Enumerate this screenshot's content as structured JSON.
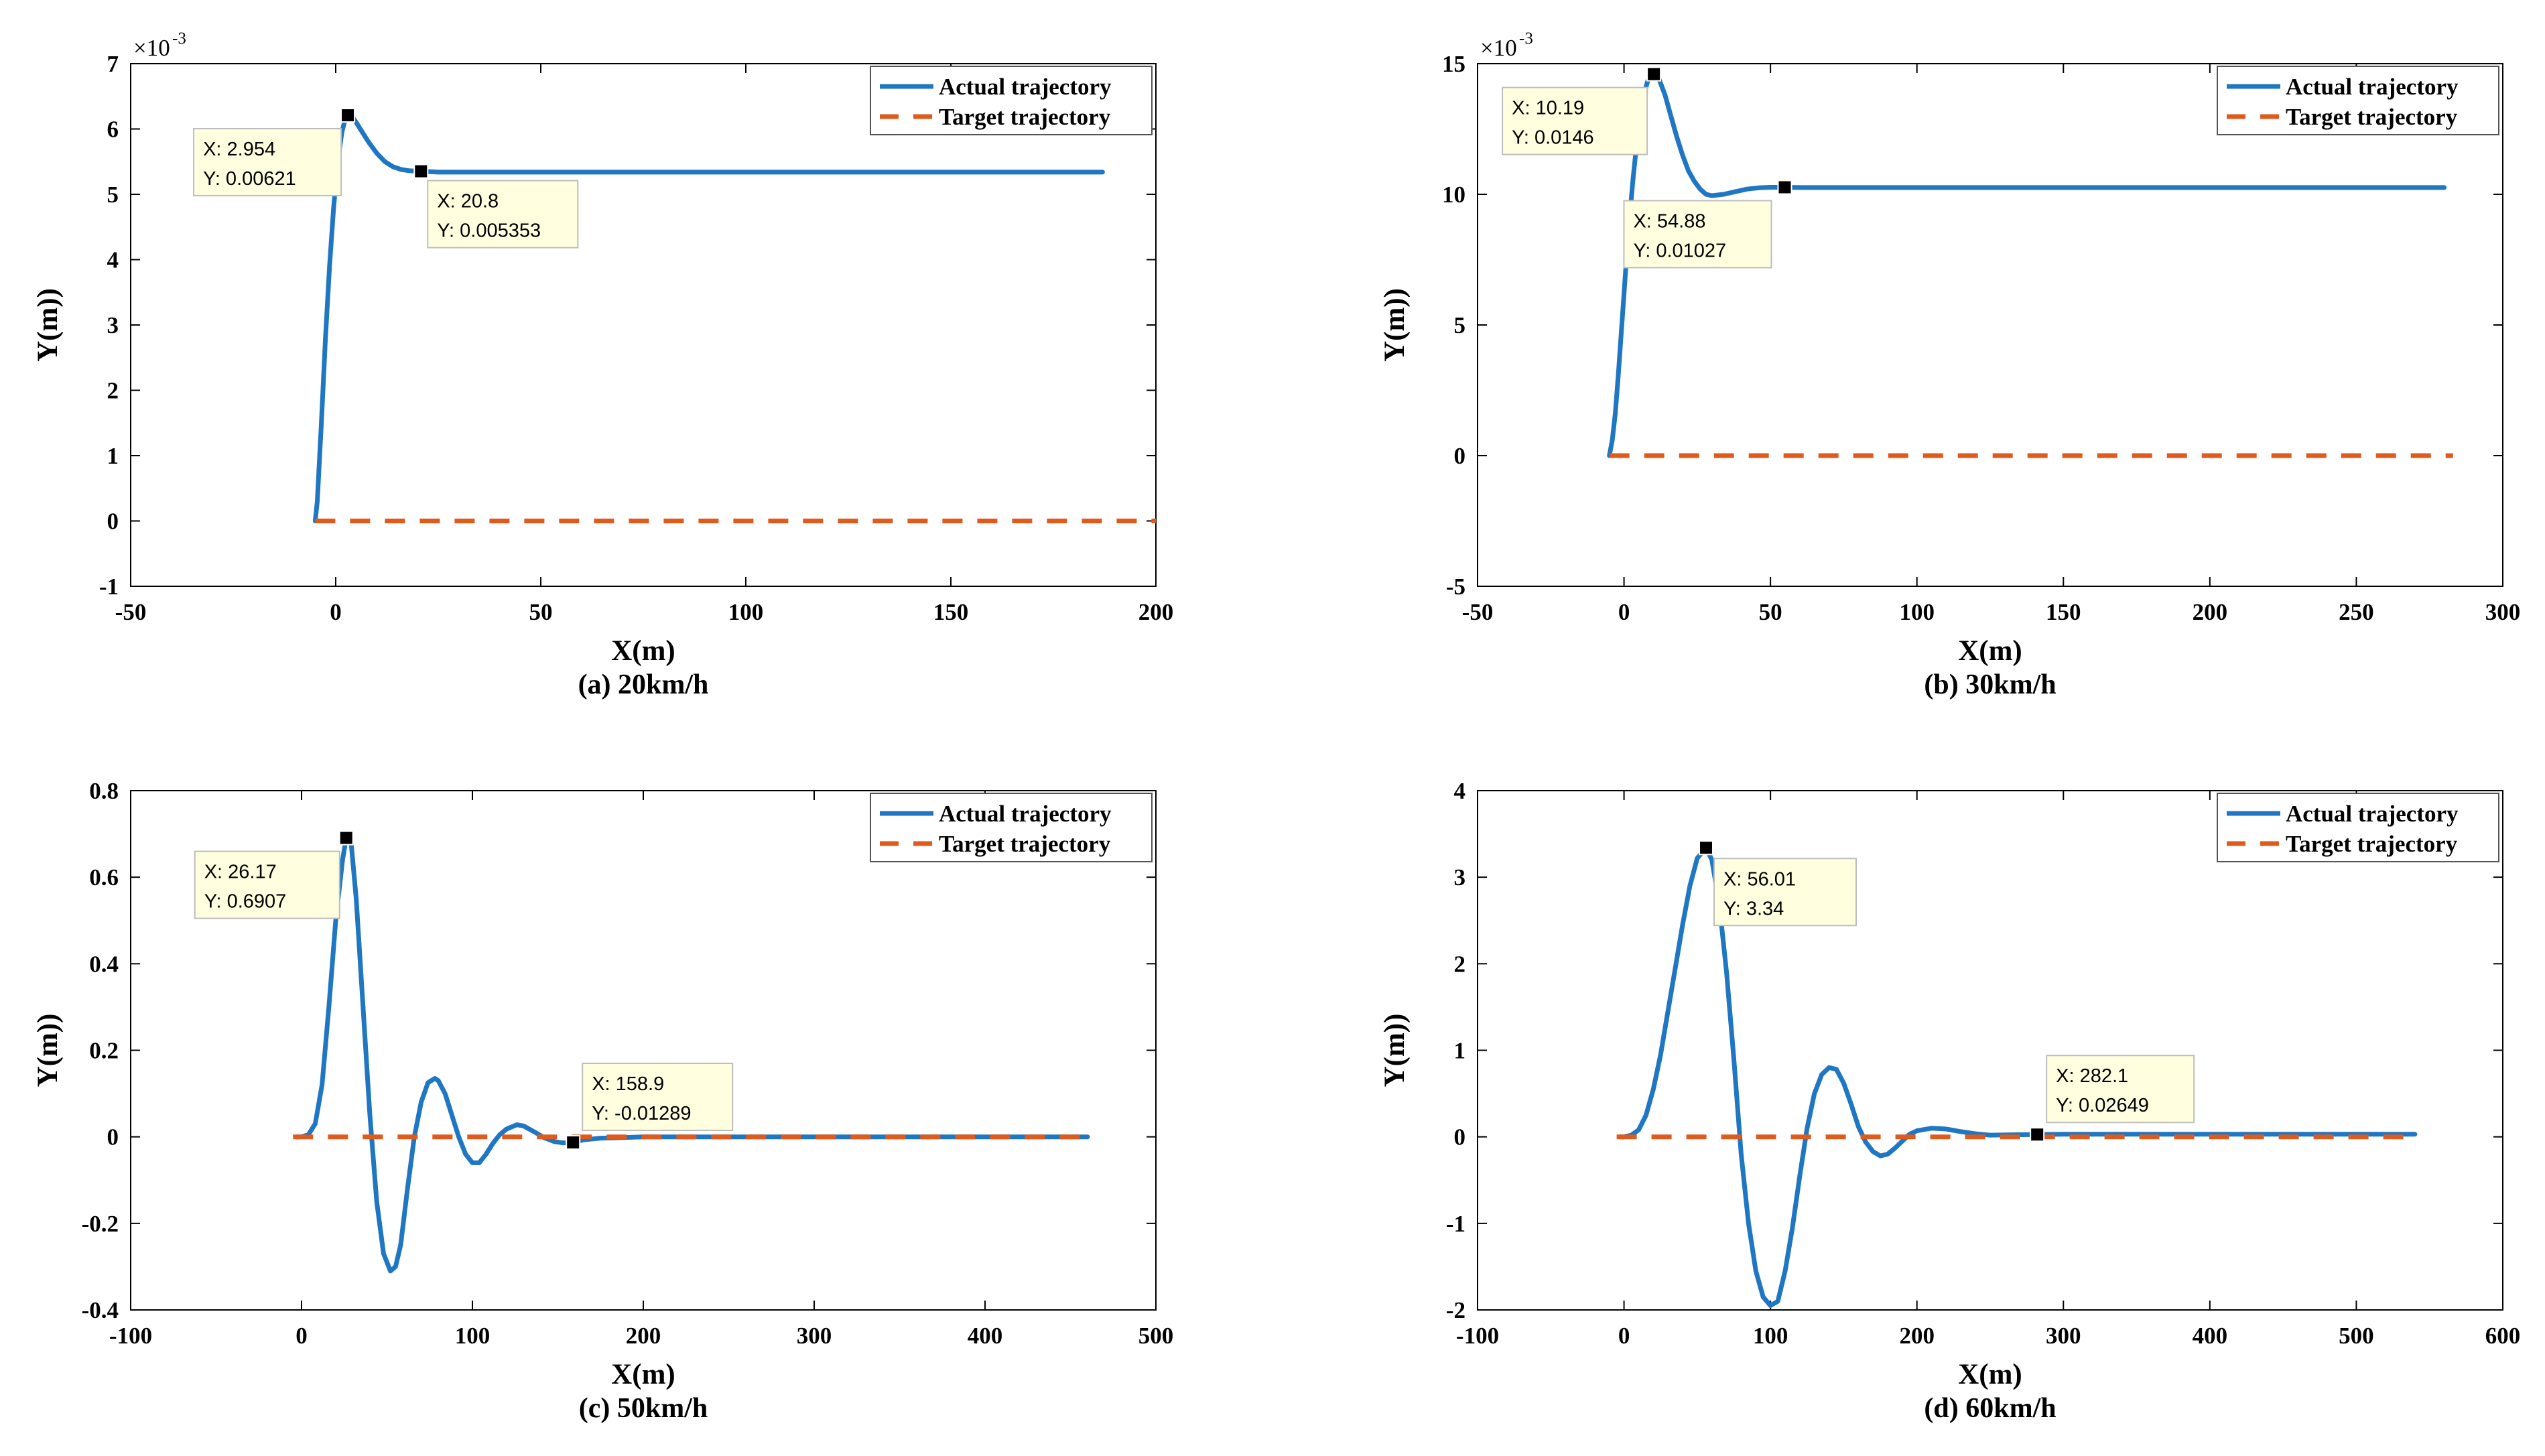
{
  "colors": {
    "actual": "#1f77c4",
    "target": "#e05a1c",
    "tip_bg": "#ffffe0",
    "tip_border": "#bdbdbd"
  },
  "chart_data": [
    {
      "type": "line",
      "caption": "(a) 20km/h",
      "xlabel": "X(m)",
      "ylabel": "Y(m))",
      "xlim": [
        -50,
        200
      ],
      "ylim": [
        -1,
        7
      ],
      "yscale": 0.001,
      "scale_base": "×10",
      "scale_exp": "-3",
      "xticks": [
        "-50",
        "0",
        "50",
        "100",
        "150",
        "200"
      ],
      "yticks": [
        "-1",
        "0",
        "1",
        "2",
        "3",
        "4",
        "5",
        "6",
        "7"
      ],
      "legend": [
        "Actual trajectory",
        "Target trajectory"
      ],
      "series": [
        {
          "name": "Actual trajectory",
          "style": "solid",
          "x": [
            -5,
            -4.5,
            -3.5,
            -2.5,
            -1.5,
            -0.5,
            0.5,
            1.5,
            2.3,
            2.954,
            4,
            5,
            6,
            8,
            10,
            12,
            14,
            16,
            18,
            20.8,
            25,
            30,
            40,
            60,
            100,
            140,
            187
          ],
          "y": [
            0,
            0.3,
            1.5,
            2.8,
            3.9,
            4.8,
            5.5,
            5.95,
            6.15,
            6.21,
            6.19,
            6.1,
            6.0,
            5.8,
            5.63,
            5.5,
            5.42,
            5.38,
            5.36,
            5.353,
            5.34,
            5.34,
            5.34,
            5.34,
            5.34,
            5.34,
            5.34
          ]
        },
        {
          "name": "Target trajectory",
          "style": "dashed",
          "x": [
            -5,
            200
          ],
          "y": [
            0,
            0
          ]
        }
      ],
      "datatips": [
        {
          "x": 2.954,
          "y": 6.21,
          "xtext": "X: 2.954",
          "ytext": "Y: 0.00621",
          "side": "left"
        },
        {
          "x": 20.8,
          "y": 5.353,
          "xtext": "X: 20.8",
          "ytext": "Y: 0.005353",
          "side": "right"
        }
      ]
    },
    {
      "type": "line",
      "caption": "(b) 30km/h",
      "xlabel": "X(m)",
      "ylabel": "Y(m))",
      "xlim": [
        -50,
        300
      ],
      "ylim": [
        -5,
        15
      ],
      "yscale": 0.001,
      "scale_base": "×10",
      "scale_exp": "-3",
      "xticks": [
        "-50",
        "0",
        "50",
        "100",
        "150",
        "200",
        "250",
        "300"
      ],
      "yticks": [
        "-5",
        "0",
        "5",
        "10",
        "15"
      ],
      "legend": [
        "Actual trajectory",
        "Target trajectory"
      ],
      "series": [
        {
          "name": "Actual trajectory",
          "style": "solid",
          "x": [
            -5,
            -4,
            -3,
            -2,
            -1,
            0,
            1,
            2,
            3,
            4,
            5,
            6,
            7,
            8,
            9,
            10.19,
            11,
            12,
            14,
            16,
            18,
            20,
            22,
            24,
            26,
            28,
            30,
            34,
            38,
            42,
            46,
            50,
            54.88,
            60,
            80,
            120,
            160,
            200,
            240,
            280
          ],
          "y": [
            0,
            0.6,
            1.6,
            3.0,
            4.6,
            6.2,
            7.8,
            9.2,
            10.5,
            11.6,
            12.5,
            13.3,
            13.9,
            14.3,
            14.5,
            14.6,
            14.55,
            14.4,
            13.8,
            13.0,
            12.2,
            11.5,
            10.9,
            10.5,
            10.2,
            10.0,
            9.95,
            10.0,
            10.1,
            10.2,
            10.25,
            10.27,
            10.27,
            10.26,
            10.26,
            10.26,
            10.26,
            10.26,
            10.26,
            10.26
          ]
        },
        {
          "name": "Target trajectory",
          "style": "dashed",
          "x": [
            -5,
            283
          ],
          "y": [
            0,
            0
          ]
        }
      ],
      "datatips": [
        {
          "x": 10.19,
          "y": 14.6,
          "xtext": "X: 10.19",
          "ytext": "Y: 0.0146",
          "side": "left"
        },
        {
          "x": 54.88,
          "y": 10.27,
          "xtext": "X: 54.88",
          "ytext": "Y: 0.01027",
          "side": "left-below"
        }
      ]
    },
    {
      "type": "line",
      "caption": "(c) 50km/h",
      "xlabel": "X(m)",
      "ylabel": "Y(m))",
      "xlim": [
        -100,
        500
      ],
      "ylim": [
        -0.4,
        0.8
      ],
      "yscale": 1,
      "scale_base": "",
      "scale_exp": "",
      "xticks": [
        "-100",
        "0",
        "100",
        "200",
        "300",
        "400",
        "500"
      ],
      "yticks": [
        "-0.4",
        "-0.2",
        "0",
        "0.2",
        "0.4",
        "0.6",
        "0.8"
      ],
      "legend": [
        "Actual trajectory",
        "Target trajectory"
      ],
      "series": [
        {
          "name": "Actual trajectory",
          "style": "solid",
          "x": [
            -3,
            0,
            4,
            8,
            12,
            16,
            20,
            24,
            26.17,
            29,
            32,
            36,
            40,
            44,
            48,
            52,
            55,
            58,
            62,
            66,
            70,
            74,
            78,
            80,
            84,
            88,
            92,
            96,
            100,
            104,
            108,
            112,
            116,
            120,
            126,
            130,
            136,
            142,
            148,
            153,
            158.9,
            165,
            175,
            185,
            200,
            240,
            300,
            360,
            420,
            460
          ],
          "y": [
            0,
            0,
            0.005,
            0.03,
            0.12,
            0.3,
            0.5,
            0.64,
            0.6907,
            0.68,
            0.55,
            0.3,
            0.05,
            -0.15,
            -0.27,
            -0.31,
            -0.3,
            -0.25,
            -0.12,
            0.0,
            0.08,
            0.125,
            0.135,
            0.13,
            0.1,
            0.05,
            0.0,
            -0.04,
            -0.06,
            -0.06,
            -0.04,
            -0.015,
            0.005,
            0.018,
            0.028,
            0.025,
            0.012,
            -0.002,
            -0.011,
            -0.014,
            -0.01289,
            -0.007,
            -0.003,
            -0.002,
            0.0,
            0.0,
            0.0,
            0.0,
            0.0,
            0.0
          ]
        },
        {
          "name": "Target trajectory",
          "style": "dashed",
          "x": [
            -5,
            460
          ],
          "y": [
            0,
            0
          ]
        }
      ],
      "datatips": [
        {
          "x": 26.17,
          "y": 0.6907,
          "xtext": "X: 26.17",
          "ytext": "Y: 0.6907",
          "side": "left"
        },
        {
          "x": 158.9,
          "y": -0.01289,
          "xtext": "X: 158.9",
          "ytext": "Y: -0.01289",
          "side": "right-above"
        }
      ]
    },
    {
      "type": "line",
      "caption": "(d) 60km/h",
      "xlabel": "X(m)",
      "ylabel": "Y(m))",
      "xlim": [
        -100,
        600
      ],
      "ylim": [
        -2,
        4
      ],
      "yscale": 1,
      "scale_base": "",
      "scale_exp": "",
      "xticks": [
        "-100",
        "0",
        "100",
        "200",
        "300",
        "400",
        "500",
        "600"
      ],
      "yticks": [
        "-2",
        "-1",
        "0",
        "1",
        "2",
        "3",
        "4"
      ],
      "legend": [
        "Actual trajectory",
        "Target trajectory"
      ],
      "series": [
        {
          "name": "Actual trajectory",
          "style": "solid",
          "x": [
            -3,
            0,
            5,
            10,
            15,
            20,
            25,
            30,
            35,
            40,
            45,
            50,
            56.01,
            60,
            65,
            70,
            75,
            80,
            85,
            90,
            95,
            100,
            105,
            110,
            115,
            120,
            125,
            130,
            135,
            140,
            145,
            150,
            155,
            160,
            165,
            170,
            175,
            180,
            185,
            190,
            195,
            200,
            210,
            220,
            230,
            240,
            250,
            265,
            282.1,
            300,
            350,
            400,
            450,
            500,
            540
          ],
          "y": [
            0,
            0,
            0.02,
            0.08,
            0.25,
            0.55,
            0.95,
            1.45,
            1.95,
            2.45,
            2.9,
            3.22,
            3.34,
            3.2,
            2.7,
            1.9,
            0.9,
            -0.2,
            -1.0,
            -1.55,
            -1.85,
            -1.95,
            -1.9,
            -1.55,
            -1.05,
            -0.45,
            0.1,
            0.5,
            0.72,
            0.8,
            0.78,
            0.62,
            0.38,
            0.12,
            -0.06,
            -0.17,
            -0.22,
            -0.2,
            -0.13,
            -0.05,
            0.03,
            0.07,
            0.1,
            0.09,
            0.06,
            0.035,
            0.02,
            0.024,
            0.02649,
            0.03,
            0.03,
            0.03,
            0.03,
            0.03,
            0.03
          ]
        },
        {
          "name": "Target trajectory",
          "style": "dashed",
          "x": [
            -5,
            540
          ],
          "y": [
            0,
            0
          ]
        }
      ],
      "datatips": [
        {
          "x": 56.01,
          "y": 3.34,
          "xtext": "X: 56.01",
          "ytext": "Y: 3.34",
          "side": "right-below"
        },
        {
          "x": 282.1,
          "y": 0.02649,
          "xtext": "X: 282.1",
          "ytext": "Y: 0.02649",
          "side": "right-above"
        }
      ]
    }
  ]
}
